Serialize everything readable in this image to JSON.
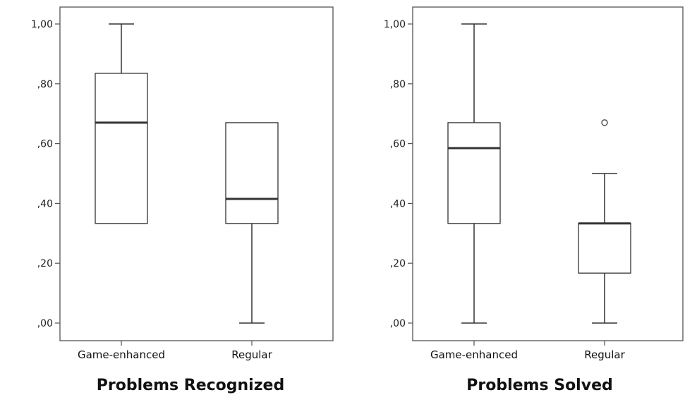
{
  "chart_data": [
    {
      "type": "boxplot",
      "title": "Problems Recognized",
      "categories": [
        "Game-enhanced",
        "Regular"
      ],
      "yticks": [
        "1,00",
        ",80",
        ",60",
        ",40",
        ",20",
        ",00"
      ],
      "ylim": [
        0,
        1
      ],
      "grid": false,
      "boxes": [
        {
          "name": "Game-enhanced",
          "whisker_low": 0.333,
          "q1": 0.333,
          "median": 0.67,
          "q3": 0.835,
          "whisker_high": 1.0,
          "outliers": []
        },
        {
          "name": "Regular",
          "whisker_low": 0.0,
          "q1": 0.333,
          "median": 0.415,
          "q3": 0.67,
          "whisker_high": 0.67,
          "outliers": []
        }
      ]
    },
    {
      "type": "boxplot",
      "title": "Problems Solved",
      "categories": [
        "Game-enhanced",
        "Regular"
      ],
      "yticks": [
        "1,00",
        ",80",
        ",60",
        ",40",
        ",20",
        ",00"
      ],
      "ylim": [
        0,
        1
      ],
      "grid": false,
      "boxes": [
        {
          "name": "Game-enhanced",
          "whisker_low": 0.0,
          "q1": 0.333,
          "median": 0.585,
          "q3": 0.67,
          "whisker_high": 1.0,
          "outliers": []
        },
        {
          "name": "Regular",
          "whisker_low": 0.0,
          "q1": 0.167,
          "median": 0.333,
          "q3": 0.333,
          "whisker_high": 0.5,
          "outliers": [
            0.67
          ]
        }
      ]
    }
  ]
}
